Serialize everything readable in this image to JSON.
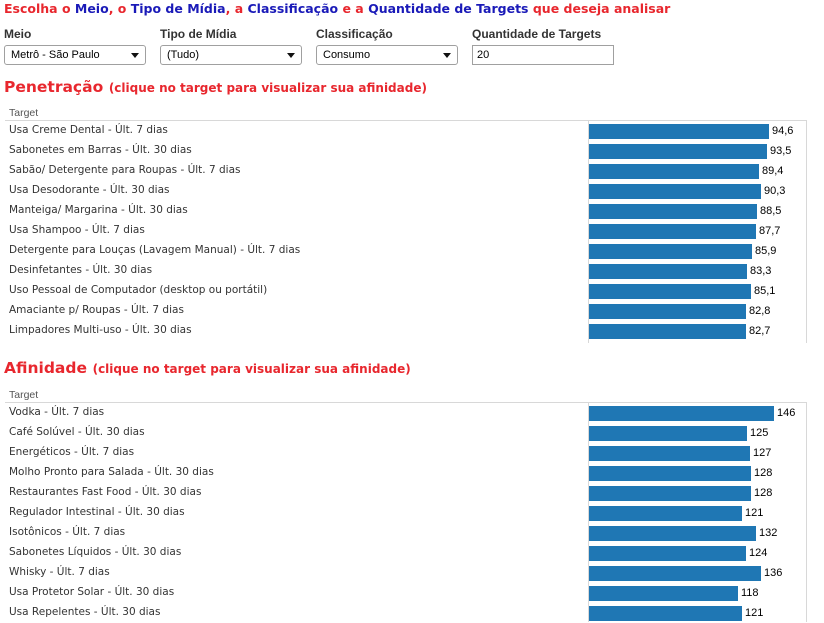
{
  "headline": {
    "part1": "Escolha o ",
    "part2": "Meio",
    "part3": ", o ",
    "part4": "Tipo de Mídia",
    "part5": ", a ",
    "part6": "Classificação",
    "part7": " e a ",
    "part8": "Quantidade de Targets",
    "part9": " que deseja analisar"
  },
  "filters": {
    "meio": {
      "label": "Meio",
      "value": "Metrô - São Paulo"
    },
    "tipo": {
      "label": "Tipo de Mídia",
      "value": "(Tudo)"
    },
    "classificacao": {
      "label": "Classificação",
      "value": "Consumo"
    },
    "quantidade": {
      "label": "Quantidade de Targets",
      "value": "20"
    }
  },
  "penetracao": {
    "title": "Penetração",
    "hint": "(clique no target para visualizar sua afinidade)",
    "column_header": "Target"
  },
  "afinidade": {
    "title": "Afinidade",
    "hint": "(clique no target para visualizar sua afinidade)",
    "column_header": "Target"
  },
  "chart_data": [
    {
      "type": "bar",
      "orientation": "horizontal",
      "title": "Penetração",
      "xlim": [
        0,
        100
      ],
      "categories": [
        "Usa Creme Dental - Últ. 7 dias",
        "Sabonetes em Barras - Últ. 30 dias",
        "Sabão/ Detergente para Roupas - Últ. 7 dias",
        "Usa Desodorante - Últ. 30 dias",
        "Manteiga/ Margarina - Últ. 30 dias",
        "Usa Shampoo - Últ. 7 dias",
        "Detergente para Louças (Lavagem Manual) - Últ. 7 dias",
        "Desinfetantes - Últ. 30 dias",
        "Uso Pessoal de Computador (desktop ou portátil)",
        "Amaciante p/ Roupas - Últ. 7 dias",
        "Limpadores Multi-uso - Últ. 30 dias"
      ],
      "values": [
        94.6,
        93.5,
        89.4,
        90.3,
        88.5,
        87.7,
        85.9,
        83.3,
        85.1,
        82.8,
        82.7
      ],
      "value_labels": [
        "94,6",
        "93,5",
        "89,4",
        "90,3",
        "88,5",
        "87,7",
        "85,9",
        "83,3",
        "85,1",
        "82,8",
        "82,7"
      ],
      "bar_color": "#1f77b4"
    },
    {
      "type": "bar",
      "orientation": "horizontal",
      "title": "Afinidade",
      "xlim": [
        0,
        150
      ],
      "categories": [
        "Vodka - Últ. 7 dias",
        "Café Solúvel - Últ. 30 dias",
        "Energéticos - Últ. 7 dias",
        "Molho Pronto para Salada - Últ. 30 dias",
        "Restaurantes Fast Food - Últ. 30 dias",
        "Regulador Intestinal - Últ. 30 dias",
        "Isotônicos - Últ. 7 dias",
        "Sabonetes Líquidos - Últ. 30 dias",
        "Whisky - Últ. 7 dias",
        "Usa Protetor Solar - Últ. 30 dias",
        "Usa Repelentes - Últ. 30 dias"
      ],
      "values": [
        146,
        125,
        127,
        128,
        128,
        121,
        132,
        124,
        136,
        118,
        121
      ],
      "value_labels": [
        "146",
        "125",
        "127",
        "128",
        "128",
        "121",
        "132",
        "124",
        "136",
        "118",
        "121"
      ],
      "bar_color": "#1f77b4"
    }
  ]
}
